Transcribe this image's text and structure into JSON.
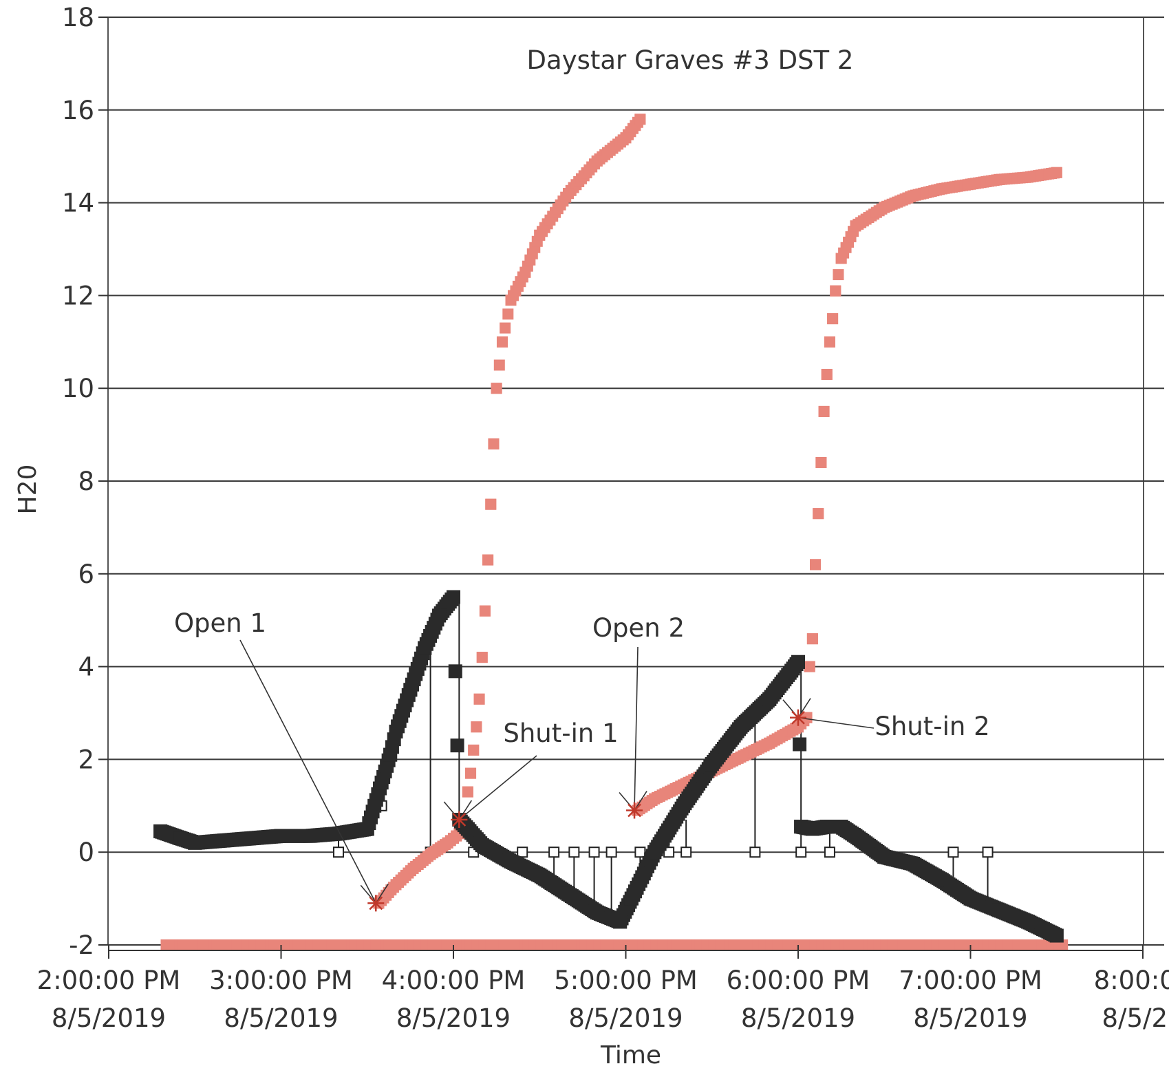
{
  "chart_data": {
    "type": "scatter",
    "title": "Daystar Graves #3 DST 2",
    "xlabel": "Time",
    "ylabel": "H20",
    "ylim": [
      -2,
      18
    ],
    "yticks": [
      "-2",
      "0",
      "2",
      "4",
      "6",
      "8",
      "10",
      "12",
      "14",
      "16",
      "18"
    ],
    "xlim": [
      "2:00 PM",
      "8:00 PM"
    ],
    "xticks": [
      {
        "time": "2:00:00 PM",
        "date": "8/5/2019"
      },
      {
        "time": "3:00:00 PM",
        "date": "8/5/2019"
      },
      {
        "time": "4:00:00 PM",
        "date": "8/5/2019"
      },
      {
        "time": "5:00:00 PM",
        "date": "8/5/2019"
      },
      {
        "time": "6:00:00 PM",
        "date": "8/5/2019"
      },
      {
        "time": "7:00:00 PM",
        "date": "8/5/2019"
      },
      {
        "time": "8:00:00",
        "date": "8/5/20"
      }
    ],
    "grid": true,
    "series": [
      {
        "color": "#e8857a",
        "marker": "square",
        "x": [
          "14:20",
          "14:40",
          "15:00",
          "15:20",
          "15:40",
          "16:00",
          "16:20",
          "16:40",
          "17:00",
          "17:20",
          "17:40",
          "18:00",
          "18:20",
          "18:40",
          "19:00",
          "19:20",
          "19:32"
        ],
        "y": [
          -2,
          -2,
          -2,
          -2,
          -2,
          -2,
          -2,
          -2,
          -2,
          -2,
          -2,
          -2,
          -2,
          -2,
          -2,
          -2,
          -2
        ]
      },
      {
        "color": "#e8857a",
        "marker": "square",
        "x": [
          "15:34",
          "15:40",
          "15:46",
          "15:52",
          "15:58",
          "16:01",
          "16:04",
          "16:05",
          "16:06",
          "16:07",
          "16:08",
          "16:09",
          "16:10",
          "16:11",
          "16:12",
          "16:13",
          "16:14",
          "16:15",
          "16:17",
          "16:20",
          "16:25",
          "16:30",
          "16:40",
          "16:50",
          "17:00",
          "17:05"
        ],
        "y": [
          -1.1,
          -0.7,
          -0.35,
          -0.05,
          0.2,
          0.35,
          0.5,
          1.3,
          1.7,
          2.2,
          2.7,
          3.3,
          4.2,
          5.2,
          6.3,
          7.5,
          8.8,
          10.0,
          11.0,
          11.9,
          12.5,
          13.3,
          14.2,
          14.9,
          15.4,
          15.8
        ]
      },
      {
        "color": "#e8857a",
        "marker": "square",
        "x": [
          "17:04",
          "17:10",
          "17:20",
          "17:30",
          "17:40",
          "17:50",
          "18:00",
          "18:03",
          "18:04",
          "18:05",
          "18:06",
          "18:07",
          "18:08",
          "18:09",
          "18:10",
          "18:11",
          "18:12",
          "18:13",
          "18:15",
          "18:20",
          "18:30",
          "18:40",
          "18:50",
          "19:00",
          "19:10",
          "19:20",
          "19:30"
        ],
        "y": [
          0.9,
          1.15,
          1.45,
          1.75,
          2.05,
          2.35,
          2.7,
          2.9,
          4.0,
          4.6,
          6.2,
          7.3,
          8.4,
          9.5,
          10.3,
          11.0,
          11.5,
          12.1,
          12.8,
          13.5,
          13.9,
          14.15,
          14.3,
          14.4,
          14.5,
          14.55,
          14.65
        ]
      },
      {
        "color": "#2a2a2a",
        "marker": "square",
        "x": [
          "14:18",
          "14:25",
          "14:30",
          "14:40",
          "14:50",
          "15:00",
          "15:10",
          "15:20",
          "15:30",
          "15:35",
          "15:38",
          "15:40",
          "15:45",
          "15:50",
          "15:55",
          "16:00",
          "16:02",
          "16:05",
          "16:10",
          "16:20",
          "16:30",
          "16:40",
          "16:50",
          "16:58",
          "17:02",
          "17:10",
          "17:20",
          "17:30",
          "17:40",
          "17:50",
          "18:00",
          "18:01",
          "18:05",
          "18:10",
          "18:15",
          "18:20",
          "18:30",
          "18:40",
          "18:50",
          "19:00",
          "19:10",
          "19:20",
          "19:30"
        ],
        "y": [
          0.45,
          0.3,
          0.2,
          0.25,
          0.3,
          0.35,
          0.35,
          0.4,
          0.5,
          1.5,
          2.1,
          2.6,
          3.5,
          4.4,
          5.1,
          5.5,
          0.7,
          0.5,
          0.15,
          -0.2,
          -0.5,
          -0.9,
          -1.3,
          -1.5,
          -1.0,
          0.0,
          1.0,
          1.9,
          2.7,
          3.3,
          4.1,
          0.55,
          0.5,
          0.55,
          0.55,
          0.35,
          -0.1,
          -0.25,
          -0.6,
          -1.0,
          -1.25,
          -1.5,
          -1.8
        ]
      }
    ],
    "annotations": [
      {
        "text": "Open 1",
        "x": "15:33",
        "y": -1.1
      },
      {
        "text": "Shut-in 1",
        "x": "16:02",
        "y": 0.7
      },
      {
        "text": "Open 2",
        "x": "17:03",
        "y": 0.9
      },
      {
        "text": "Shut-in 2",
        "x": "18:00",
        "y": 2.9
      }
    ],
    "drops": [
      {
        "x": "15:20",
        "from": 0.35,
        "to": 0
      },
      {
        "x": "15:35",
        "from": 1.5,
        "to": 1.0
      },
      {
        "x": "15:52",
        "from": 4.5,
        "to": 0
      },
      {
        "x": "16:02",
        "from": 5.4,
        "to": 0.7
      },
      {
        "x": "16:07",
        "from": 0.5,
        "to": 0
      },
      {
        "x": "16:24",
        "from": -0.3,
        "to": 0
      },
      {
        "x": "16:35",
        "from": -0.6,
        "to": 0
      },
      {
        "x": "16:42",
        "from": -0.9,
        "to": 0
      },
      {
        "x": "16:49",
        "from": -1.2,
        "to": 0
      },
      {
        "x": "16:55",
        "from": -1.4,
        "to": 0
      },
      {
        "x": "17:05",
        "from": -0.7,
        "to": 0
      },
      {
        "x": "17:15",
        "from": 0.2,
        "to": 0
      },
      {
        "x": "17:21",
        "from": 0.7,
        "to": 0
      },
      {
        "x": "17:45",
        "from": 3.0,
        "to": 0
      },
      {
        "x": "18:01",
        "from": 4.1,
        "to": 0
      },
      {
        "x": "18:11",
        "from": 0.55,
        "to": 0
      },
      {
        "x": "18:54",
        "from": -0.7,
        "to": 0
      },
      {
        "x": "19:06",
        "from": -1.15,
        "to": 0
      }
    ]
  }
}
